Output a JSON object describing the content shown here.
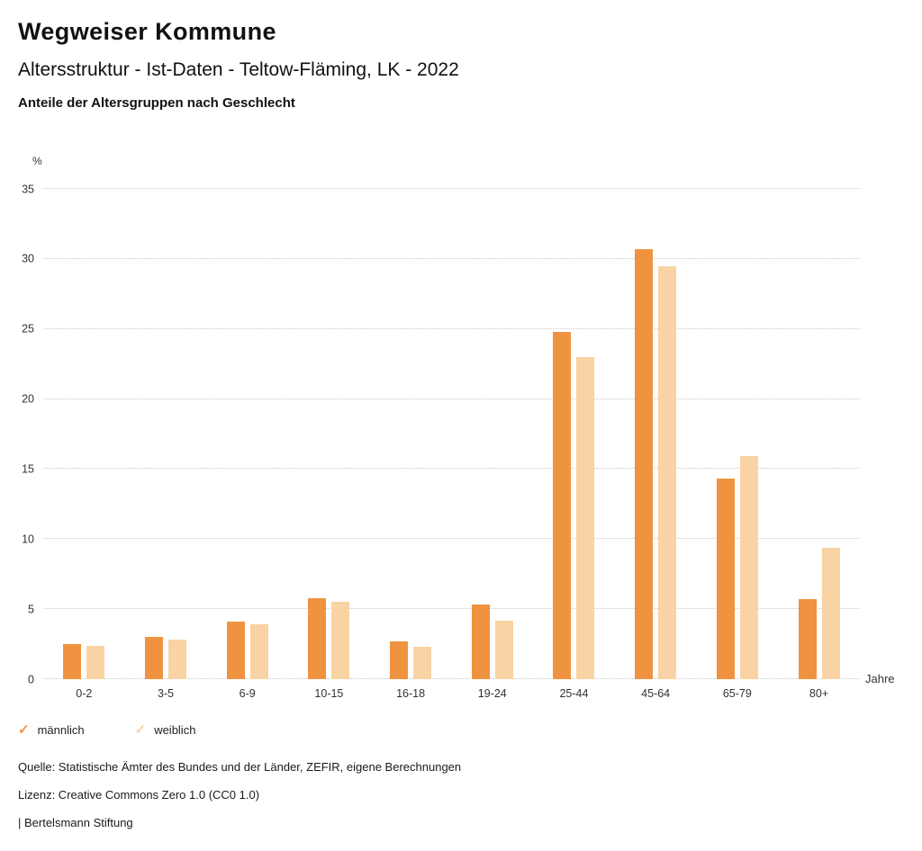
{
  "header": {
    "title": "Wegweiser Kommune",
    "subtitle": "Altersstruktur - Ist-Daten - Teltow-Fläming, LK - 2022",
    "chart_heading": "Anteile der Altersgruppen nach Geschlecht"
  },
  "chart_data": {
    "type": "bar",
    "title": "Anteile der Altersgruppen nach Geschlecht",
    "y_unit_label": "%",
    "x_unit_label": "Jahre",
    "categories": [
      "0-2",
      "3-5",
      "6-9",
      "10-15",
      "16-18",
      "19-24",
      "25-44",
      "45-64",
      "65-79",
      "80+"
    ],
    "series": [
      {
        "name": "männlich",
        "color": "#ef9340",
        "values": [
          2.5,
          3.0,
          4.1,
          5.8,
          2.7,
          5.3,
          24.8,
          30.7,
          14.3,
          5.7
        ]
      },
      {
        "name": "weiblich",
        "color": "#f9d3a3",
        "values": [
          2.4,
          2.8,
          3.9,
          5.5,
          2.3,
          4.2,
          23.0,
          29.5,
          15.9,
          9.4
        ]
      }
    ],
    "ylim": [
      0,
      35
    ],
    "yticks": [
      0,
      5,
      10,
      15,
      20,
      25,
      30,
      35
    ],
    "grid": true,
    "legend_position": "bottom"
  },
  "footer": {
    "source": "Quelle: Statistische Ämter des Bundes und der Länder, ZEFIR, eigene Berechnungen",
    "license": "Lizenz: Creative Commons Zero 1.0 (CC0 1.0)",
    "attribution": "| Bertelsmann Stiftung"
  }
}
